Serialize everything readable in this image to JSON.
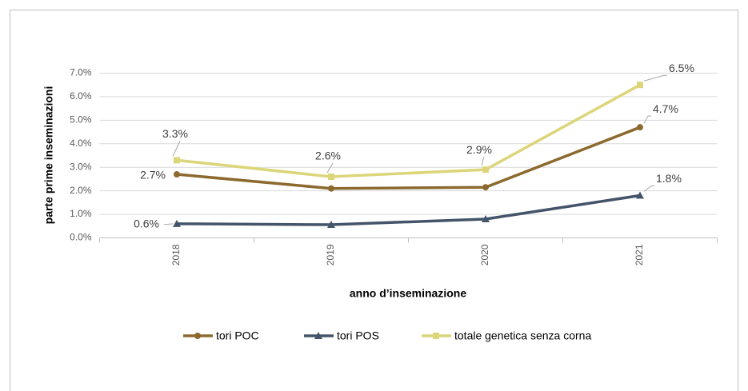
{
  "chart_data": {
    "type": "line",
    "x_label": "anno d’inseminazione",
    "y_label": "parte prime inseminazioni",
    "categories": [
      "2018",
      "2019",
      "2020",
      "2021"
    ],
    "series": [
      {
        "name": "tori POC",
        "color": "#8c6a2f",
        "marker": "circle",
        "values": [
          2.7,
          2.1,
          2.15,
          4.7
        ],
        "value_labels": [
          "2.7%",
          null,
          null,
          "4.7%"
        ]
      },
      {
        "name": "tori POS",
        "color": "#44546a",
        "marker": "triangle",
        "values": [
          0.6,
          0.56,
          0.8,
          1.8
        ],
        "value_labels": [
          "0.6%",
          null,
          null,
          "1.8%"
        ]
      },
      {
        "name": "totale genetica senza corna",
        "color": "#dcd57a",
        "marker": "square",
        "values": [
          3.3,
          2.6,
          2.9,
          6.5
        ],
        "value_labels": [
          "3.3%",
          "2.6%",
          "2.9%",
          "6.5%"
        ]
      }
    ],
    "ylim": [
      0,
      7
    ],
    "yticks": [
      {
        "value": 0,
        "label": "0.0%"
      },
      {
        "value": 1,
        "label": "1.0%"
      },
      {
        "value": 2,
        "label": "2.0%"
      },
      {
        "value": 3,
        "label": "3.0%"
      },
      {
        "value": 4,
        "label": "4.0%"
      },
      {
        "value": 5,
        "label": "5.0%"
      },
      {
        "value": 6,
        "label": "6.0%"
      },
      {
        "value": 7,
        "label": "7.0%"
      }
    ],
    "grid": true,
    "legend": "bottom"
  }
}
